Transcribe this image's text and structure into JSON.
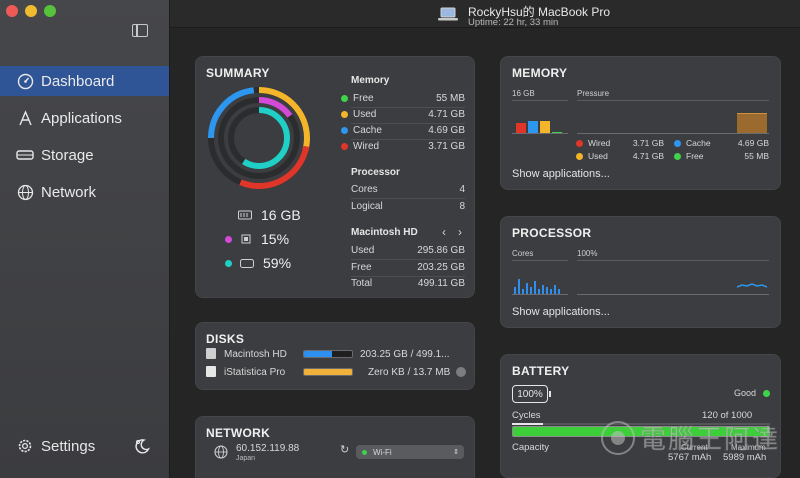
{
  "window": {
    "title": "RockyHsu的 MacBook Pro",
    "uptime": "Uptime: 22 hr, 33 min"
  },
  "sidebar": {
    "items": [
      {
        "label": "Dashboard",
        "icon": "gauge-icon",
        "active": true
      },
      {
        "label": "Applications",
        "icon": "apps-icon",
        "active": false
      },
      {
        "label": "Storage",
        "icon": "drive-icon",
        "active": false
      },
      {
        "label": "Network",
        "icon": "globe-icon",
        "active": false
      }
    ],
    "settings_label": "Settings"
  },
  "summary": {
    "title": "SUMMARY",
    "memory_total": "16 GB",
    "cpu_percent": "15%",
    "disk_percent": "59%",
    "memory": {
      "heading": "Memory",
      "rows": [
        {
          "label": "Free",
          "value": "55 MB",
          "color": "#3fd24b"
        },
        {
          "label": "Used",
          "value": "4.71 GB",
          "color": "#f5b52b"
        },
        {
          "label": "Cache",
          "value": "4.69 GB",
          "color": "#2d96ef"
        },
        {
          "label": "Wired",
          "value": "3.71 GB",
          "color": "#e0362a"
        }
      ]
    },
    "processor": {
      "heading": "Processor",
      "rows": [
        {
          "label": "Cores",
          "value": "4"
        },
        {
          "label": "Logical",
          "value": "8"
        }
      ]
    },
    "disk": {
      "heading": "Macintosh HD",
      "rows": [
        {
          "label": "Used",
          "value": "295.86 GB"
        },
        {
          "label": "Free",
          "value": "203.25 GB"
        },
        {
          "label": "Total",
          "value": "499.11 GB"
        }
      ]
    }
  },
  "disks": {
    "title": "DISKS",
    "items": [
      {
        "name": "Macintosh HD",
        "usage": "203.25 GB / 499.1...",
        "fill": 0.59,
        "color": "#2d8ff0"
      },
      {
        "name": "iStatistica Pro",
        "usage": "Zero KB / 13.7 MB",
        "fill": 1.0,
        "color": "#f1b23a"
      }
    ]
  },
  "network": {
    "title": "NETWORK",
    "ip": "60.152.119.88",
    "location": "Japan",
    "interface": "Wi-Fi"
  },
  "memory_card": {
    "title": "MEMORY",
    "size_label": "16 GB",
    "pressure_label": "Pressure",
    "legend": [
      {
        "label": "Wired",
        "value": "3.71 GB",
        "color": "#e0362a"
      },
      {
        "label": "Cache",
        "value": "4.69 GB",
        "color": "#2d96ef"
      },
      {
        "label": "Used",
        "value": "4.71 GB",
        "color": "#f5b52b"
      },
      {
        "label": "Free",
        "value": "55 MB",
        "color": "#3fd24b"
      }
    ],
    "link": "Show applications..."
  },
  "processor_card": {
    "title": "PROCESSOR",
    "cores_label": "Cores",
    "percent_label": "100%",
    "link": "Show applications..."
  },
  "battery_card": {
    "title": "BATTERY",
    "percent": "100%",
    "status": "Good",
    "cycles_label": "Cycles",
    "cycles_value": "120 of 1000",
    "cycles_fill": 0.12,
    "capacity_label": "Capacity",
    "current_label": "Current",
    "maximum_label": "Maximum",
    "current_value": "5767 mAh",
    "maximum_value": "5989 mAh",
    "watermark": "電腦王阿達"
  },
  "colors": {
    "accent": "#2f5596",
    "green": "#3fd24b",
    "yellow": "#f5b52b",
    "blue": "#2d96ef",
    "red": "#e0362a",
    "magenta": "#d34ad8",
    "teal": "#20d0c6"
  }
}
